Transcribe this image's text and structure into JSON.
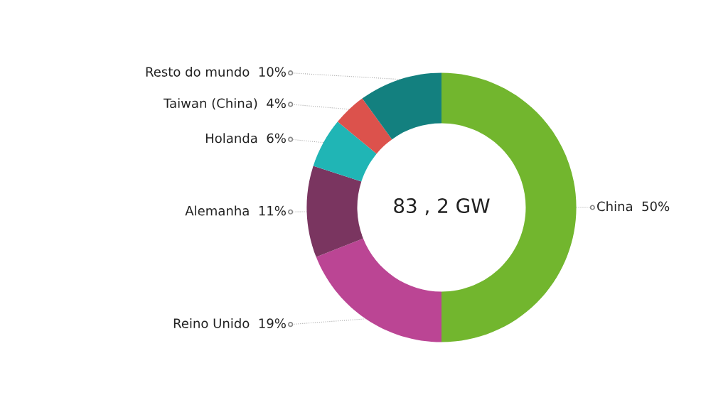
{
  "chart_data": {
    "type": "donut",
    "categories": [
      "China",
      "Reino Unido",
      "Alemanha",
      "Holanda",
      "Taiwan (China)",
      "Resto do mundo"
    ],
    "values": [
      50,
      19,
      11,
      6,
      4,
      10
    ],
    "value_labels": [
      "50%",
      "19%",
      "11%",
      "6%",
      "4%",
      "10%"
    ],
    "colors": [
      "#72b62e",
      "#bb4594",
      "#7a3560",
      "#20b5b5",
      "#dc524c",
      "#13807f"
    ],
    "annotations": [
      "83 , 2 GW"
    ],
    "legend": false
  }
}
